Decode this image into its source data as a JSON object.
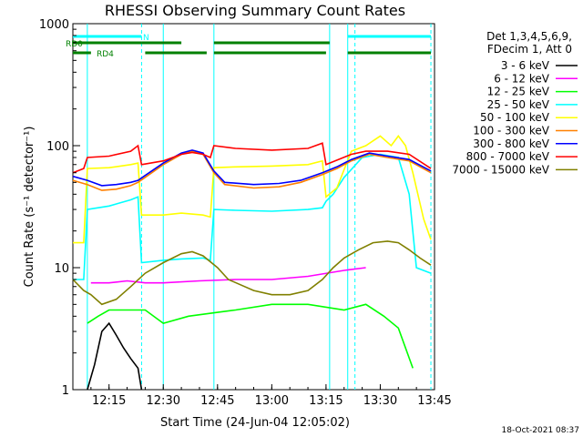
{
  "chart_data": {
    "type": "line",
    "title": "RHESSI Observing Summary Count Rates",
    "xlabel": "Start Time (24-Jun-04 12:05:02)",
    "ylabel": "Count Rate (s⁻¹ detector⁻¹)",
    "x_unit": "minutes of day",
    "xlim": [
      "12:05",
      "13:45"
    ],
    "ylim": [
      1,
      1000
    ],
    "yscale": "log",
    "xticks": [
      "12:15",
      "12:30",
      "12:45",
      "13:00",
      "13:15",
      "13:30",
      "13:45"
    ],
    "yticks": [
      "1",
      "10",
      "100",
      "1000"
    ],
    "legend_header": [
      "Det 1,3,4,5,6,9,",
      "FDecim 1, Att 0"
    ],
    "legend_position": "right",
    "series": [
      {
        "name": "3 - 6 keV",
        "color": "#000000",
        "points": [
          [
            "12:09",
            1.0
          ],
          [
            "12:11",
            1.6
          ],
          [
            "12:13",
            3.0
          ],
          [
            "12:15",
            3.5
          ],
          [
            "12:17",
            2.8
          ],
          [
            "12:19",
            2.2
          ],
          [
            "12:21",
            1.8
          ],
          [
            "12:23",
            1.5
          ],
          [
            "12:24",
            1.0
          ]
        ]
      },
      {
        "name": "6 - 12 keV",
        "color": "#ff00ff",
        "points": [
          [
            "12:10",
            7.5
          ],
          [
            "12:15",
            7.5
          ],
          [
            "12:20",
            7.8
          ],
          [
            "12:25",
            7.5
          ],
          [
            "12:30",
            7.5
          ],
          [
            "12:40",
            7.8
          ],
          [
            "12:50",
            8.0
          ],
          [
            "13:00",
            8.0
          ],
          [
            "13:10",
            8.5
          ],
          [
            "13:20",
            9.5
          ],
          [
            "13:26",
            10.0
          ]
        ]
      },
      {
        "name": "12 - 25 keV",
        "color": "#00ff00",
        "points": [
          [
            "12:09",
            3.5
          ],
          [
            "12:12",
            4.0
          ],
          [
            "12:15",
            4.5
          ],
          [
            "12:20",
            4.5
          ],
          [
            "12:25",
            4.5
          ],
          [
            "12:30",
            3.5
          ],
          [
            "12:37",
            4.0
          ],
          [
            "12:45",
            4.3
          ],
          [
            "12:50",
            4.5
          ],
          [
            "13:00",
            5.0
          ],
          [
            "13:10",
            5.0
          ],
          [
            "13:20",
            4.5
          ],
          [
            "13:26",
            5.0
          ],
          [
            "13:31",
            4.0
          ],
          [
            "13:35",
            3.2
          ],
          [
            "13:39",
            1.5
          ]
        ]
      },
      {
        "name": "25 - 50 keV",
        "color": "#00ffff",
        "points": [
          [
            "12:05",
            8.0
          ],
          [
            "12:08",
            8.0
          ],
          [
            "12:09",
            30.0
          ],
          [
            "12:15",
            32.0
          ],
          [
            "12:21",
            36.0
          ],
          [
            "12:23",
            38.0
          ],
          [
            "12:24",
            11.0
          ],
          [
            "12:30",
            11.5
          ],
          [
            "12:35",
            11.8
          ],
          [
            "12:41",
            12.0
          ],
          [
            "12:43",
            11.5
          ],
          [
            "12:44",
            30.0
          ],
          [
            "12:50",
            29.5
          ],
          [
            "13:00",
            29.0
          ],
          [
            "13:10",
            30.0
          ],
          [
            "13:14",
            31.0
          ],
          [
            "13:15",
            35.0
          ],
          [
            "13:17",
            40.0
          ],
          [
            "13:20",
            55.0
          ],
          [
            "13:25",
            80.0
          ],
          [
            "13:30",
            85.0
          ],
          [
            "13:35",
            80.0
          ],
          [
            "13:38",
            40.0
          ],
          [
            "13:40",
            10.0
          ],
          [
            "13:44",
            9.0
          ]
        ]
      },
      {
        "name": "50 - 100 keV",
        "color": "#ffff00",
        "points": [
          [
            "12:05",
            16.0
          ],
          [
            "12:08",
            16.0
          ],
          [
            "12:09",
            65.0
          ],
          [
            "12:15",
            66.0
          ],
          [
            "12:21",
            70.0
          ],
          [
            "12:23",
            72.0
          ],
          [
            "12:24",
            27.0
          ],
          [
            "12:30",
            27.0
          ],
          [
            "12:35",
            28.0
          ],
          [
            "12:41",
            27.0
          ],
          [
            "12:43",
            26.0
          ],
          [
            "12:44",
            66.0
          ],
          [
            "12:50",
            67.0
          ],
          [
            "13:00",
            68.0
          ],
          [
            "13:10",
            70.0
          ],
          [
            "13:14",
            75.0
          ],
          [
            "13:15",
            38.0
          ],
          [
            "13:18",
            45.0
          ],
          [
            "13:22",
            90.0
          ],
          [
            "13:26",
            100.0
          ],
          [
            "13:30",
            120.0
          ],
          [
            "13:33",
            100.0
          ],
          [
            "13:35",
            120.0
          ],
          [
            "13:37",
            100.0
          ],
          [
            "13:39",
            60.0
          ],
          [
            "13:42",
            25.0
          ],
          [
            "13:44",
            17.0
          ]
        ]
      },
      {
        "name": "100 - 300 keV",
        "color": "#ff8000",
        "points": [
          [
            "12:05",
            52.0
          ],
          [
            "12:09",
            48.0
          ],
          [
            "12:13",
            43.0
          ],
          [
            "12:17",
            44.0
          ],
          [
            "12:21",
            47.0
          ],
          [
            "12:23",
            50.0
          ],
          [
            "12:25",
            55.0
          ],
          [
            "12:30",
            70.0
          ],
          [
            "12:35",
            85.0
          ],
          [
            "12:38",
            90.0
          ],
          [
            "12:41",
            85.0
          ],
          [
            "12:44",
            60.0
          ],
          [
            "12:47",
            48.0
          ],
          [
            "12:55",
            45.0
          ],
          [
            "13:02",
            46.0
          ],
          [
            "13:08",
            50.0
          ],
          [
            "13:14",
            58.0
          ],
          [
            "13:18",
            65.0
          ],
          [
            "13:22",
            75.0
          ],
          [
            "13:27",
            85.0
          ],
          [
            "13:32",
            80.0
          ],
          [
            "13:38",
            75.0
          ],
          [
            "13:44",
            60.0
          ]
        ]
      },
      {
        "name": "300 - 800 keV",
        "color": "#0000ff",
        "points": [
          [
            "12:05",
            56.0
          ],
          [
            "12:09",
            52.0
          ],
          [
            "12:13",
            47.0
          ],
          [
            "12:17",
            48.0
          ],
          [
            "12:21",
            50.0
          ],
          [
            "12:23",
            52.0
          ],
          [
            "12:25",
            57.0
          ],
          [
            "12:30",
            72.0
          ],
          [
            "12:35",
            87.0
          ],
          [
            "12:38",
            92.0
          ],
          [
            "12:41",
            87.0
          ],
          [
            "12:44",
            62.0
          ],
          [
            "12:47",
            50.0
          ],
          [
            "12:55",
            48.0
          ],
          [
            "13:02",
            49.0
          ],
          [
            "13:08",
            52.0
          ],
          [
            "13:14",
            60.0
          ],
          [
            "13:18",
            67.0
          ],
          [
            "13:22",
            77.0
          ],
          [
            "13:27",
            87.0
          ],
          [
            "13:32",
            82.0
          ],
          [
            "13:38",
            77.0
          ],
          [
            "13:44",
            62.0
          ]
        ]
      },
      {
        "name": "800 - 7000 keV",
        "color": "#ff0000",
        "points": [
          [
            "12:05",
            60.0
          ],
          [
            "12:08",
            65.0
          ],
          [
            "12:09",
            80.0
          ],
          [
            "12:15",
            82.0
          ],
          [
            "12:21",
            90.0
          ],
          [
            "12:23",
            100.0
          ],
          [
            "12:24",
            70.0
          ],
          [
            "12:30",
            75.0
          ],
          [
            "12:35",
            85.0
          ],
          [
            "12:38",
            88.0
          ],
          [
            "12:41",
            85.0
          ],
          [
            "12:43",
            80.0
          ],
          [
            "12:44",
            100.0
          ],
          [
            "12:50",
            95.0
          ],
          [
            "13:00",
            92.0
          ],
          [
            "13:10",
            95.0
          ],
          [
            "13:14",
            105.0
          ],
          [
            "13:15",
            70.0
          ],
          [
            "13:22",
            85.0
          ],
          [
            "13:26",
            90.0
          ],
          [
            "13:32",
            90.0
          ],
          [
            "13:38",
            85.0
          ],
          [
            "13:44",
            65.0
          ]
        ]
      },
      {
        "name": "7000 - 15000 keV",
        "color": "#808000",
        "points": [
          [
            "12:05",
            8.0
          ],
          [
            "12:08",
            6.5
          ],
          [
            "12:10",
            6.0
          ],
          [
            "12:13",
            5.0
          ],
          [
            "12:17",
            5.5
          ],
          [
            "12:21",
            7.0
          ],
          [
            "12:25",
            9.0
          ],
          [
            "12:30",
            11.0
          ],
          [
            "12:35",
            13.0
          ],
          [
            "12:38",
            13.5
          ],
          [
            "12:41",
            12.5
          ],
          [
            "12:45",
            10.0
          ],
          [
            "12:48",
            8.0
          ],
          [
            "12:55",
            6.5
          ],
          [
            "13:00",
            6.0
          ],
          [
            "13:05",
            6.0
          ],
          [
            "13:10",
            6.5
          ],
          [
            "13:14",
            8.0
          ],
          [
            "13:17",
            10.0
          ],
          [
            "13:20",
            12.0
          ],
          [
            "13:24",
            14.0
          ],
          [
            "13:28",
            16.0
          ],
          [
            "13:32",
            16.5
          ],
          [
            "13:35",
            16.0
          ],
          [
            "13:38",
            14.0
          ],
          [
            "13:41",
            12.0
          ],
          [
            "13:44",
            10.5
          ]
        ]
      }
    ],
    "attenuator_bars": [
      {
        "label": "N",
        "color": "#00ffff",
        "segments": [
          [
            "12:05",
            "12:24"
          ],
          [
            "13:21",
            "13:44"
          ]
        ]
      },
      {
        "label": "RD0",
        "color": "#008000",
        "segments": [
          [
            "12:05",
            "12:24"
          ],
          [
            "12:24",
            "12:35"
          ],
          [
            "12:44",
            "13:16"
          ]
        ]
      },
      {
        "label": "RD4",
        "color": "#008000",
        "segments": [
          [
            "12:05",
            "12:10"
          ],
          [
            "12:25",
            "12:42"
          ],
          [
            "12:44",
            "13:15"
          ],
          [
            "13:21",
            "13:44"
          ]
        ]
      }
    ],
    "vertical_markers": [
      {
        "time": "12:09",
        "style": "solid",
        "color": "#00ffff"
      },
      {
        "time": "12:24",
        "style": "dashed",
        "color": "#00ffff"
      },
      {
        "time": "12:30",
        "style": "solid",
        "color": "#00ffff"
      },
      {
        "time": "12:44",
        "style": "solid",
        "color": "#00ffff"
      },
      {
        "time": "13:16",
        "style": "solid",
        "color": "#00ffff"
      },
      {
        "time": "13:21",
        "style": "solid",
        "color": "#00ffff"
      },
      {
        "time": "13:23",
        "style": "dashed",
        "color": "#00ffff"
      },
      {
        "time": "13:44",
        "style": "dashed",
        "color": "#00ffff"
      }
    ]
  },
  "footer_stamp": "18-Oct-2021 08:37"
}
